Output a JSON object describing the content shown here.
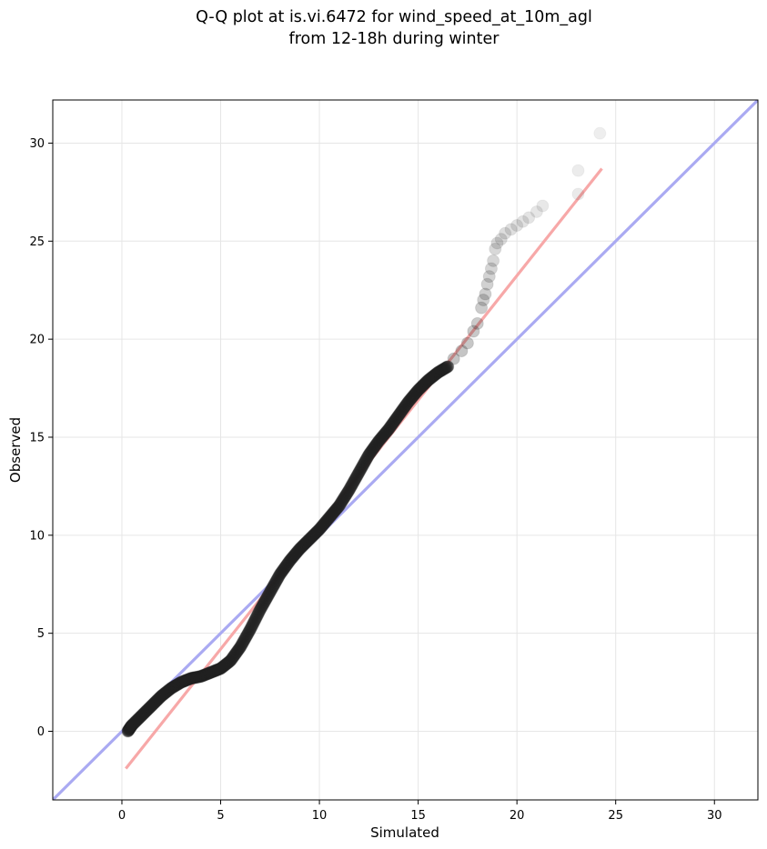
{
  "chart_data": {
    "type": "scatter",
    "title_lines": [
      "Q-Q plot at is.vi.6472 for wind_speed_at_10m_agl",
      "from 12-18h during winter"
    ],
    "xlabel": "Simulated",
    "ylabel": "Observed",
    "xlim": [
      -3.5,
      32.2
    ],
    "ylim": [
      -3.5,
      32.2
    ],
    "x_ticks": [
      0,
      5,
      10,
      15,
      20,
      25,
      30
    ],
    "y_ticks": [
      0,
      5,
      10,
      15,
      20,
      25,
      30
    ],
    "grid": true,
    "legend": "none",
    "colors": {
      "points": "#222222",
      "identity_line": "#aaaaf2",
      "fit_line": "#f7a8a8",
      "grid": "#e6e6e6"
    },
    "reference_lines": [
      {
        "name": "",
        "kind": "identity",
        "x": [
          -3.5,
          32.2
        ],
        "y": [
          -3.5,
          32.2
        ]
      },
      {
        "name": "",
        "kind": "fit",
        "x": [
          0.2,
          24.3
        ],
        "y": [
          -1.9,
          28.7
        ]
      }
    ],
    "series": [
      {
        "name": "",
        "outer_points_x": [
          16.5,
          16.8,
          17.2,
          17.5,
          17.8,
          18.0,
          18.2,
          18.3,
          18.4,
          18.5,
          18.6,
          18.7,
          18.8,
          18.9,
          19.0,
          19.2,
          19.4,
          19.7,
          20.0,
          20.3,
          20.6,
          21.0,
          21.3,
          23.1,
          23.1,
          24.2
        ],
        "outer_points_y": [
          18.6,
          19.0,
          19.4,
          19.8,
          20.4,
          20.8,
          21.6,
          22.0,
          22.3,
          22.8,
          23.2,
          23.6,
          24.0,
          24.6,
          24.9,
          25.1,
          25.4,
          25.6,
          25.8,
          26.0,
          26.2,
          26.5,
          26.8,
          27.4,
          28.6,
          30.5
        ],
        "quantile_curve_x": [
          0.3,
          0.5,
          1.0,
          1.5,
          2.0,
          2.5,
          3.0,
          3.5,
          4.0,
          4.5,
          5.0,
          5.5,
          6.0,
          6.5,
          7.0,
          7.5,
          8.0,
          8.5,
          9.0,
          9.5,
          10.0,
          10.5,
          11.0,
          11.5,
          12.0,
          12.5,
          13.0,
          13.5,
          14.0,
          14.5,
          15.0,
          15.5,
          16.0,
          16.5
        ],
        "quantile_curve_y": [
          0.0,
          0.3,
          0.8,
          1.3,
          1.8,
          2.2,
          2.5,
          2.7,
          2.8,
          3.0,
          3.2,
          3.6,
          4.3,
          5.2,
          6.2,
          7.1,
          8.0,
          8.7,
          9.3,
          9.8,
          10.3,
          10.9,
          11.5,
          12.3,
          13.2,
          14.1,
          14.8,
          15.4,
          16.1,
          16.8,
          17.4,
          17.9,
          18.3,
          18.6
        ]
      }
    ]
  }
}
